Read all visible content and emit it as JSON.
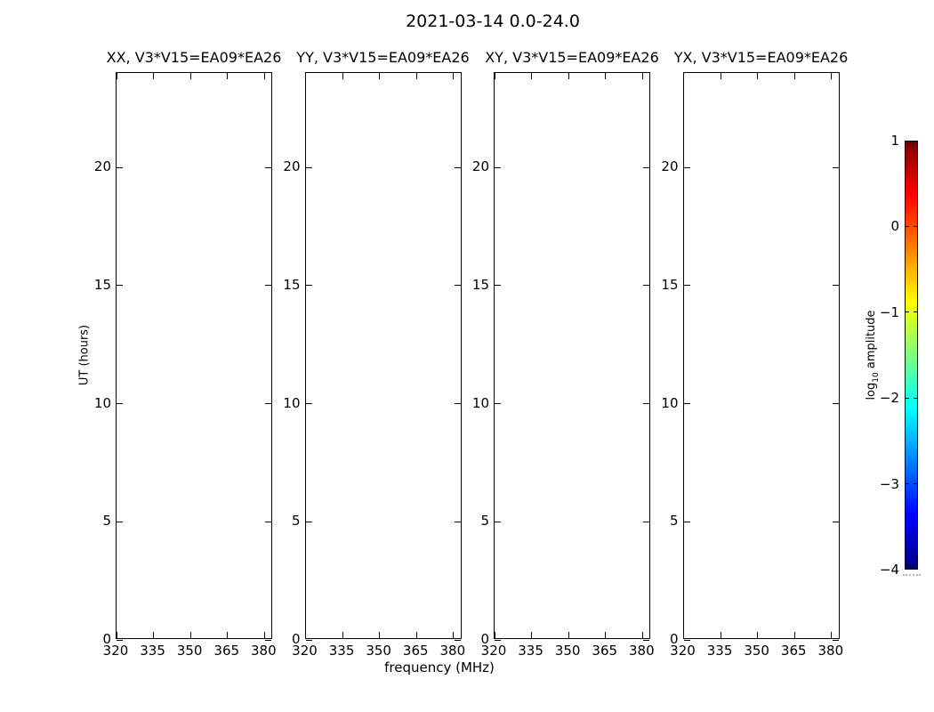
{
  "figure": {
    "suptitle": "2021-03-14 0.0-24.0",
    "background": "#ffffff",
    "text_color": "#000000"
  },
  "chart_data": {
    "type": "heatmap",
    "title": "2021-03-14 0.0-24.0",
    "subtitle": "waterfall plots (time vs frequency) for four polarization products; panels contain no rendered data (empty white)",
    "panels": [
      {
        "title": "XX, V3*V15=EA09*EA26",
        "values": []
      },
      {
        "title": "YY, V3*V15=EA09*EA26",
        "values": []
      },
      {
        "title": "XY, V3*V15=EA09*EA26",
        "values": []
      },
      {
        "title": "YX, V3*V15=EA09*EA26",
        "values": []
      }
    ],
    "xlabel": "frequency (MHz)",
    "ylabel": "UT (hours)",
    "x_ticks": [
      320,
      335,
      350,
      365,
      380
    ],
    "x_tick_labels": [
      "320",
      "335",
      "350",
      "365",
      "380"
    ],
    "xlim": [
      320,
      383.5
    ],
    "y_ticks": [
      0,
      5,
      10,
      15,
      20
    ],
    "y_tick_labels": [
      "0",
      "5",
      "10",
      "15",
      "20"
    ],
    "ylim": [
      0,
      24
    ],
    "grid": false,
    "legend": "none",
    "colorbar": {
      "label_prefix": "log",
      "label_sub": "10",
      "label_suffix": " amplitude",
      "tick_values": [
        1,
        0,
        -1,
        -2,
        -3,
        -4
      ],
      "tick_labels": [
        "1",
        "0",
        "−1",
        "−2",
        "−3",
        "−4"
      ],
      "lim": [
        -4,
        1
      ],
      "colormap": "jet",
      "gradient_stops": [
        {
          "pos": 0.0,
          "color": "#00007f"
        },
        {
          "pos": 0.125,
          "color": "#0000ff"
        },
        {
          "pos": 0.375,
          "color": "#00ffff"
        },
        {
          "pos": 0.625,
          "color": "#ffff00"
        },
        {
          "pos": 0.875,
          "color": "#ff0000"
        },
        {
          "pos": 1.0,
          "color": "#7f0000"
        }
      ]
    }
  }
}
